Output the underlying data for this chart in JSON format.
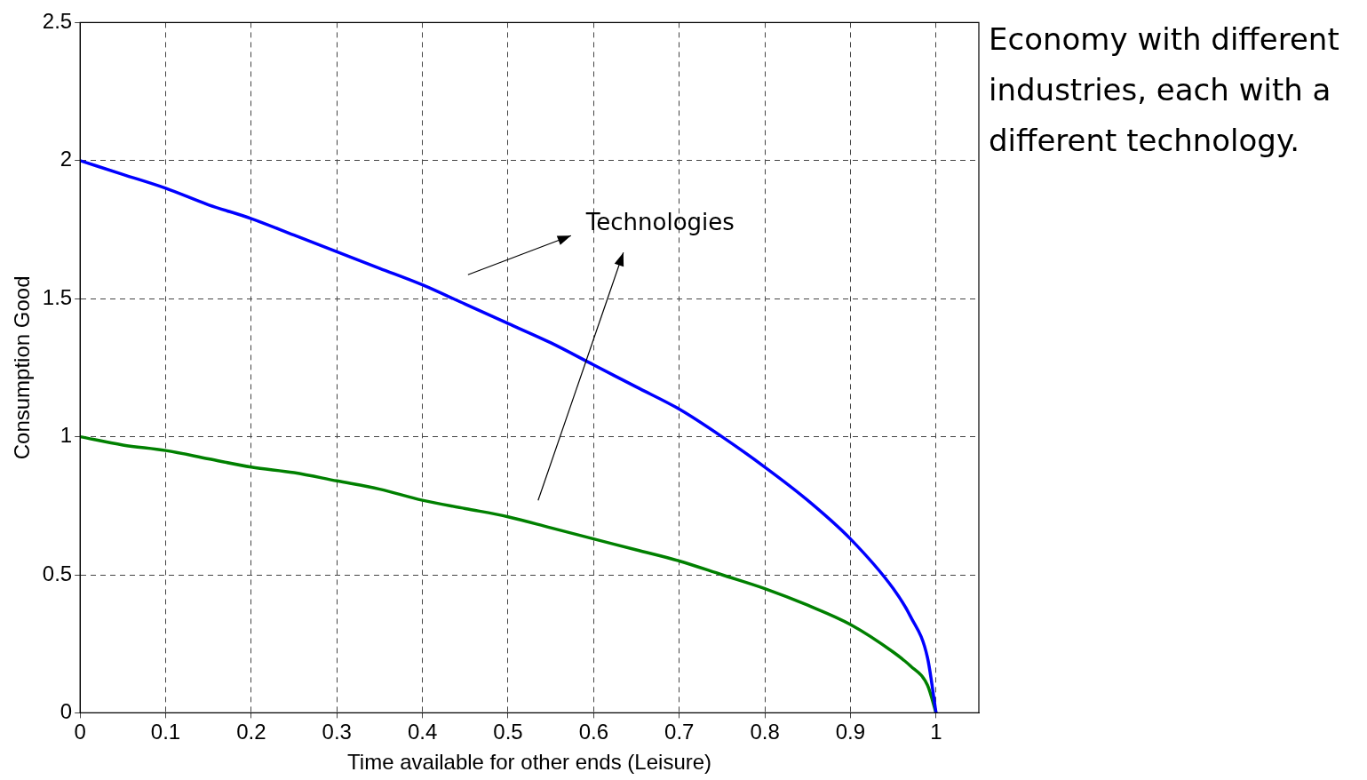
{
  "chart_data": {
    "type": "line",
    "xlabel": "Time available for other ends (Leisure)",
    "ylabel": "Consumption Good",
    "x": [
      0,
      0.05,
      0.1,
      0.15,
      0.2,
      0.25,
      0.3,
      0.35,
      0.4,
      0.45,
      0.5,
      0.55,
      0.6,
      0.65,
      0.7,
      0.75,
      0.8,
      0.85,
      0.9,
      0.95,
      0.97,
      0.99,
      1
    ],
    "series": [
      {
        "color": "#0000ff",
        "values": [
          2,
          1.95,
          1.9,
          1.84,
          1.79,
          1.73,
          1.67,
          1.61,
          1.55,
          1.48,
          1.41,
          1.34,
          1.26,
          1.18,
          1.1,
          1.0,
          0.89,
          0.77,
          0.63,
          0.45,
          0.35,
          0.2,
          0
        ]
      },
      {
        "color": "#008000",
        "values": [
          1,
          0.97,
          0.95,
          0.92,
          0.89,
          0.87,
          0.84,
          0.81,
          0.77,
          0.74,
          0.71,
          0.67,
          0.63,
          0.59,
          0.55,
          0.5,
          0.45,
          0.39,
          0.32,
          0.22,
          0.17,
          0.1,
          0
        ]
      }
    ],
    "xlim": [
      0,
      1.05
    ],
    "xticks": [
      0,
      0.1,
      0.2,
      0.3,
      0.4,
      0.5,
      0.6,
      0.7,
      0.8,
      0.9,
      1
    ],
    "ylim": [
      0,
      2.5
    ],
    "yticks": [
      0,
      0.5,
      1,
      1.5,
      2,
      2.5
    ],
    "grid": true,
    "legend": false,
    "marker": "none",
    "line_style": "solid",
    "annotations": [
      "Technologies",
      "Economy with different industries, each with a different technology."
    ]
  }
}
